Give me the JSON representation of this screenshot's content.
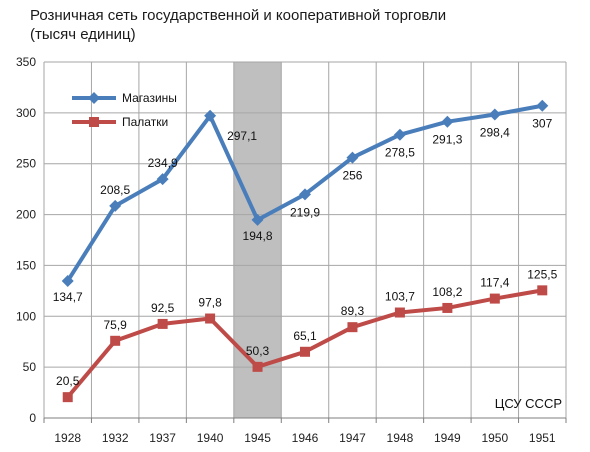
{
  "chart_data": {
    "type": "line",
    "title_line1": "Розничная сеть государственной и кооперативной торговли",
    "title_line2": "(тысяч единиц)",
    "categories": [
      "1928",
      "1932",
      "1937",
      "1940",
      "1945",
      "1946",
      "1947",
      "1948",
      "1949",
      "1950",
      "1951"
    ],
    "series": [
      {
        "name": "Магазины",
        "color": "#4a7ebb",
        "marker": "diamond",
        "values": [
          134.7,
          208.5,
          234.9,
          297.1,
          194.8,
          219.9,
          256,
          278.5,
          291.3,
          298.4,
          307
        ],
        "labels": [
          "134,7",
          "208,5",
          "234,9",
          "297,1",
          "194,8",
          "219,9",
          "256",
          "278,5",
          "291,3",
          "298,4",
          "307"
        ]
      },
      {
        "name": "Палатки",
        "color": "#be4b48",
        "marker": "square",
        "values": [
          20.5,
          75.9,
          92.5,
          97.8,
          50.3,
          65.1,
          89.3,
          103.7,
          108.2,
          117.4,
          125.5
        ],
        "labels": [
          "20,5",
          "75,9",
          "92,5",
          "97,8",
          "50,3",
          "65,1",
          "89,3",
          "103,7",
          "108,2",
          "117,4",
          "125,5"
        ]
      }
    ],
    "ylim": [
      0,
      350
    ],
    "yticks": [
      "0",
      "50",
      "100",
      "150",
      "200",
      "250",
      "300",
      "350"
    ],
    "highlight_category": "1945",
    "highlight_color": "#bfbfbf",
    "grid": true,
    "legend": "top-left",
    "source": "ЦСУ СССР"
  }
}
